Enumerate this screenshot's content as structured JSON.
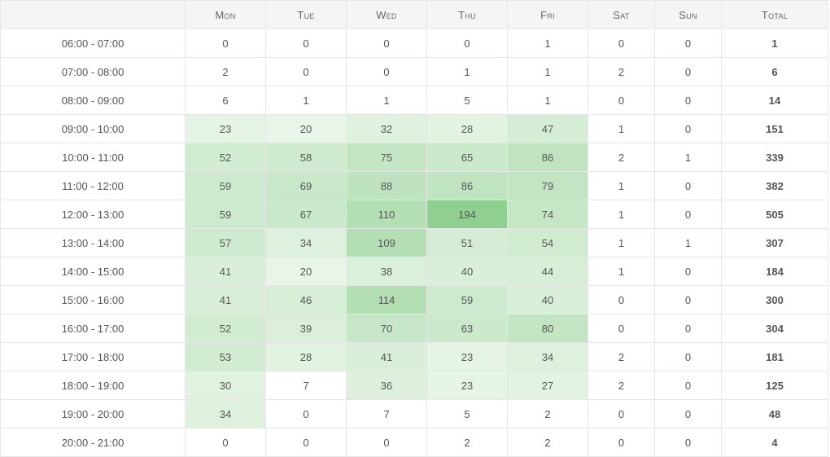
{
  "colors": {
    "heat_base": "#ffffff",
    "heat_max": "#8fcf8f",
    "border": "#e6e6e6",
    "header_bg": "#f5f5f5"
  },
  "header": {
    "corner": "",
    "columns": [
      "Mon",
      "Tue",
      "Wed",
      "Thu",
      "Fri",
      "Sat",
      "Sun",
      "Total"
    ]
  },
  "rows": [
    {
      "range": "06:00 - 07:00",
      "values": [
        0,
        0,
        0,
        0,
        1,
        0,
        0
      ],
      "total": 1
    },
    {
      "range": "07:00 - 08:00",
      "values": [
        2,
        0,
        0,
        1,
        1,
        2,
        0
      ],
      "total": 6
    },
    {
      "range": "08:00 - 09:00",
      "values": [
        6,
        1,
        1,
        5,
        1,
        0,
        0
      ],
      "total": 14
    },
    {
      "range": "09:00 - 10:00",
      "values": [
        23,
        20,
        32,
        28,
        47,
        1,
        0
      ],
      "total": 151
    },
    {
      "range": "10:00 - 11:00",
      "values": [
        52,
        58,
        75,
        65,
        86,
        2,
        1
      ],
      "total": 339
    },
    {
      "range": "11:00 - 12:00",
      "values": [
        59,
        69,
        88,
        86,
        79,
        1,
        0
      ],
      "total": 382
    },
    {
      "range": "12:00 - 13:00",
      "values": [
        59,
        67,
        110,
        194,
        74,
        1,
        0
      ],
      "total": 505
    },
    {
      "range": "13:00 - 14:00",
      "values": [
        57,
        34,
        109,
        51,
        54,
        1,
        1
      ],
      "total": 307
    },
    {
      "range": "14:00 - 15:00",
      "values": [
        41,
        20,
        38,
        40,
        44,
        1,
        0
      ],
      "total": 184
    },
    {
      "range": "15:00 - 16:00",
      "values": [
        41,
        46,
        114,
        59,
        40,
        0,
        0
      ],
      "total": 300
    },
    {
      "range": "16:00 - 17:00",
      "values": [
        52,
        39,
        70,
        63,
        80,
        0,
        0
      ],
      "total": 304
    },
    {
      "range": "17:00 - 18:00",
      "values": [
        53,
        28,
        41,
        23,
        34,
        2,
        0
      ],
      "total": 181
    },
    {
      "range": "18:00 - 19:00",
      "values": [
        30,
        7,
        36,
        23,
        27,
        2,
        0
      ],
      "total": 125
    },
    {
      "range": "19:00 - 20:00",
      "values": [
        34,
        0,
        7,
        5,
        2,
        0,
        0
      ],
      "total": 48
    },
    {
      "range": "20:00 - 21:00",
      "values": [
        0,
        0,
        0,
        2,
        2,
        0,
        0
      ],
      "total": 4
    }
  ]
}
